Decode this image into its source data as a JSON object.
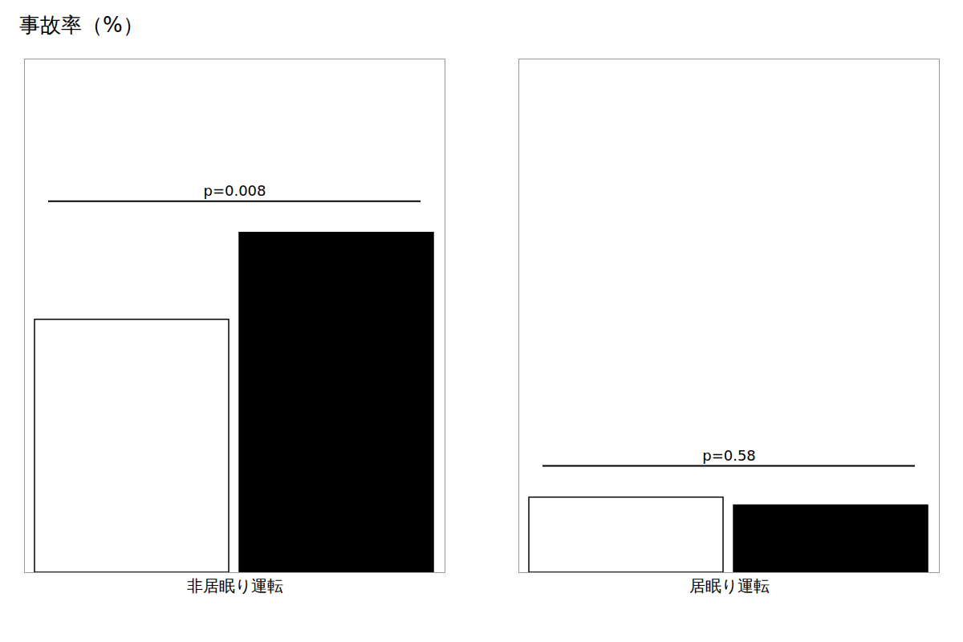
{
  "chart_data": {
    "type": "bar",
    "title": "事故率（%）",
    "categories": [
      "非居眠り運転",
      "居眠り運転"
    ],
    "series": [
      {
        "color": "white",
        "values": [
          3.2,
          0.95
        ]
      },
      {
        "color": "black",
        "values": [
          4.3,
          0.85
        ]
      }
    ],
    "annotations": [
      "p=0.008",
      "p=0.58"
    ],
    "ylim": [
      0,
      6.5
    ],
    "tick_labels": "x",
    "grid": false
  }
}
